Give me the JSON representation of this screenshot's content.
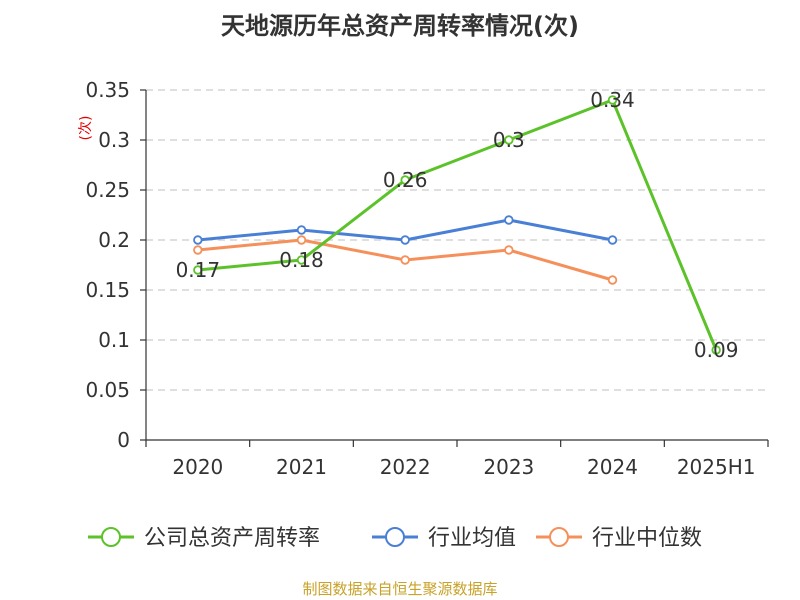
{
  "chart_data": {
    "type": "line",
    "title": "天地源历年总资产周转率情况(次)",
    "ylabel": "(次)",
    "xlabel": "",
    "categories": [
      "2020",
      "2021",
      "2022",
      "2023",
      "2024",
      "2025H1"
    ],
    "ylim": [
      0,
      0.35
    ],
    "yticks": [
      0,
      0.05,
      0.1,
      0.15,
      0.2,
      0.25,
      0.3,
      0.35
    ],
    "ytick_labels": [
      "0",
      "0.05",
      "0.1",
      "0.15",
      "0.2",
      "0.25",
      "0.3",
      "0.35"
    ],
    "grid": true,
    "legend_position": "bottom",
    "series": [
      {
        "name": "公司总资产周转率",
        "color": "#5cc22a",
        "values": [
          0.17,
          0.18,
          0.26,
          0.3,
          0.34,
          0.09
        ],
        "data_labels": [
          "0.17",
          "0.18",
          "0.26",
          "0.3",
          "0.34",
          "0.09"
        ]
      },
      {
        "name": "行业均值",
        "color": "#4a7fd6",
        "values": [
          0.2,
          0.21,
          0.2,
          0.22,
          0.2,
          null
        ]
      },
      {
        "name": "行业中位数",
        "color": "#f5905a",
        "values": [
          0.19,
          0.2,
          0.18,
          0.19,
          0.16,
          null
        ]
      }
    ]
  },
  "source": "制图数据来自恒生聚源数据库"
}
